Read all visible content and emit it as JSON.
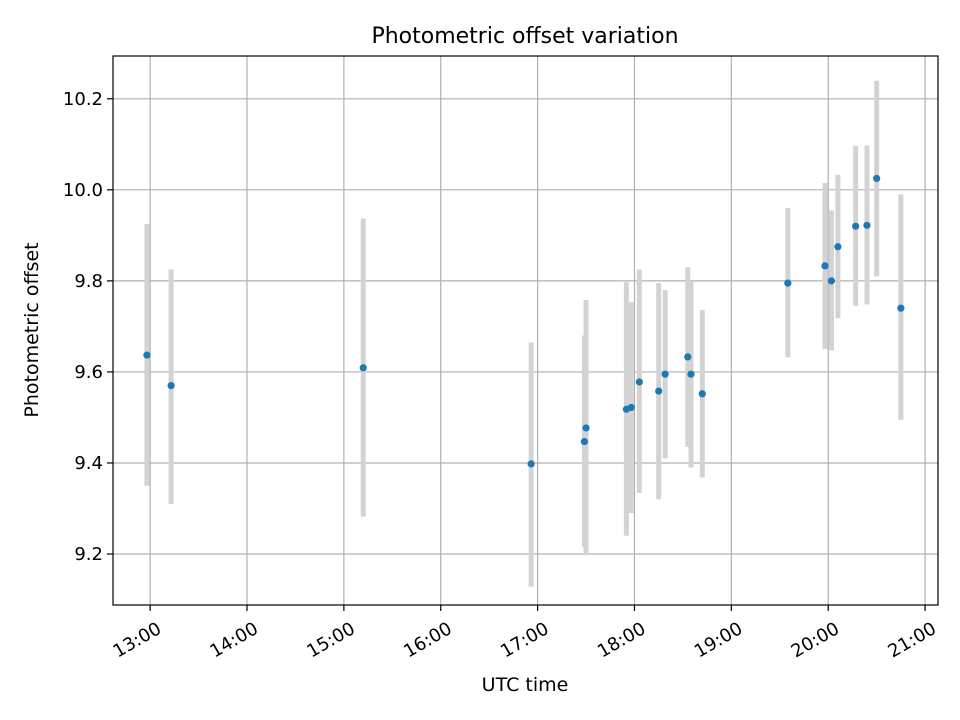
{
  "chart_data": {
    "type": "scatter",
    "title": "Photometric offset variation",
    "xlabel": "UTC time",
    "ylabel": "Photometric offset",
    "x_tick_labels": [
      "13:00",
      "14:00",
      "15:00",
      "16:00",
      "17:00",
      "18:00",
      "19:00",
      "20:00",
      "21:00"
    ],
    "y_tick_labels": [
      "9.2",
      "9.4",
      "9.6",
      "9.8",
      "10.0",
      "10.2"
    ],
    "xlim": [
      "12:37",
      "21:08"
    ],
    "ylim": [
      9.088,
      10.294
    ],
    "grid": true,
    "point_color": "#1f77b4",
    "errorbar_color": "#d3d3d3",
    "points": [
      {
        "x": "12:58",
        "y": 9.637,
        "err_low": 9.35,
        "err_high": 9.925
      },
      {
        "x": "13:13",
        "y": 9.57,
        "err_low": 9.31,
        "err_high": 9.825
      },
      {
        "x": "15:12",
        "y": 9.609,
        "err_low": 9.282,
        "err_high": 9.937
      },
      {
        "x": "16:56",
        "y": 9.398,
        "err_low": 9.128,
        "err_high": 9.665
      },
      {
        "x": "17:29",
        "y": 9.447,
        "err_low": 9.215,
        "err_high": 9.68
      },
      {
        "x": "17:30",
        "y": 9.477,
        "err_low": 9.2,
        "err_high": 9.758
      },
      {
        "x": "17:55",
        "y": 9.518,
        "err_low": 9.24,
        "err_high": 9.797
      },
      {
        "x": "17:58",
        "y": 9.522,
        "err_low": 9.29,
        "err_high": 9.753
      },
      {
        "x": "18:03",
        "y": 9.578,
        "err_low": 9.334,
        "err_high": 9.825
      },
      {
        "x": "18:15",
        "y": 9.558,
        "err_low": 9.32,
        "err_high": 9.795
      },
      {
        "x": "18:19",
        "y": 9.595,
        "err_low": 9.41,
        "err_high": 9.78
      },
      {
        "x": "18:33",
        "y": 9.633,
        "err_low": 9.435,
        "err_high": 9.83
      },
      {
        "x": "18:35",
        "y": 9.595,
        "err_low": 9.39,
        "err_high": 9.8
      },
      {
        "x": "18:42",
        "y": 9.552,
        "err_low": 9.368,
        "err_high": 9.736
      },
      {
        "x": "19:35",
        "y": 9.795,
        "err_low": 9.632,
        "err_high": 9.96
      },
      {
        "x": "19:58",
        "y": 9.833,
        "err_low": 9.65,
        "err_high": 10.015
      },
      {
        "x": "20:02",
        "y": 9.8,
        "err_low": 9.647,
        "err_high": 9.955
      },
      {
        "x": "20:06",
        "y": 9.875,
        "err_low": 9.718,
        "err_high": 10.033
      },
      {
        "x": "20:17",
        "y": 9.92,
        "err_low": 9.745,
        "err_high": 10.097
      },
      {
        "x": "20:24",
        "y": 9.922,
        "err_low": 9.748,
        "err_high": 10.097
      },
      {
        "x": "20:30",
        "y": 10.025,
        "err_low": 9.81,
        "err_high": 10.24
      },
      {
        "x": "20:45",
        "y": 9.74,
        "err_low": 9.495,
        "err_high": 9.99
      }
    ]
  }
}
